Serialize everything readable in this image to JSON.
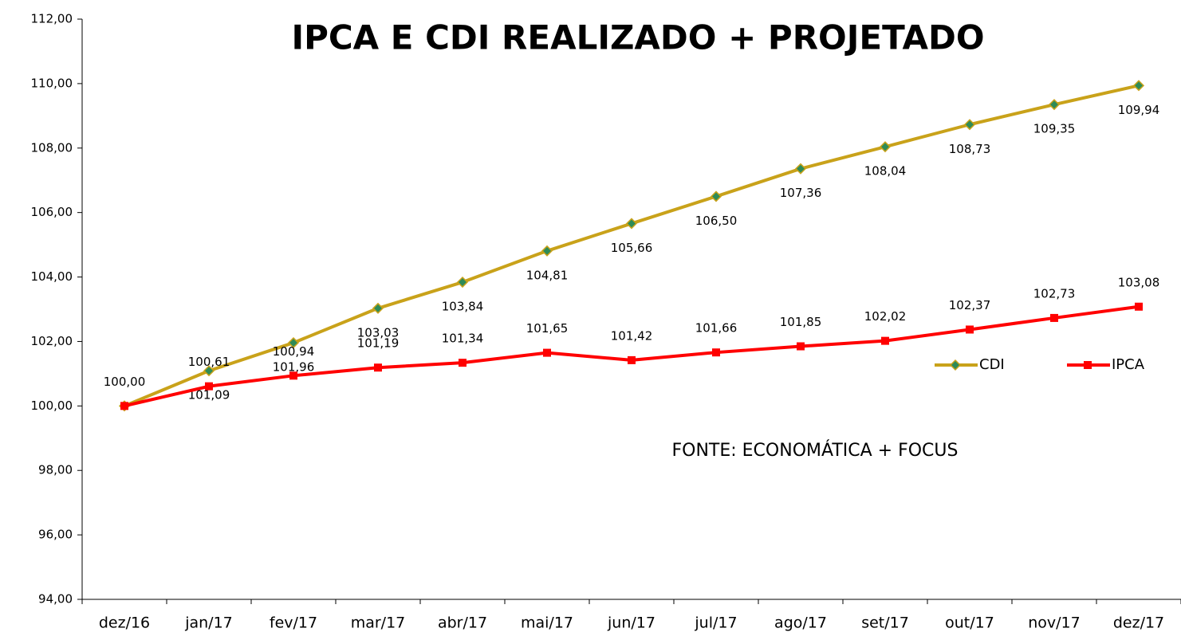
{
  "chart_data": {
    "type": "line",
    "title": "IPCA  E CDI  REALIZADO + PROJETADO",
    "annotation": "FONTE: ECONOMÁTICA + FOCUS",
    "categories": [
      "dez/16",
      "jan/17",
      "fev/17",
      "mar/17",
      "abr/17",
      "mai/17",
      "jun/17",
      "jul/17",
      "ago/17",
      "set/17",
      "out/17",
      "nov/17",
      "dez/17"
    ],
    "series": [
      {
        "name": "CDI",
        "color": "#c9a21a",
        "marker_color": "#2e8b57",
        "values": [
          100.0,
          101.09,
          101.96,
          103.03,
          103.84,
          104.81,
          105.66,
          106.5,
          107.36,
          108.04,
          108.73,
          109.35,
          109.94
        ],
        "value_labels": [
          null,
          "101,09",
          "101,96",
          "103,03",
          "103,84",
          "104,81",
          "105,66",
          "106,50",
          "107,36",
          "108,04",
          "108,73",
          "109,35",
          "109,94"
        ]
      },
      {
        "name": "IPCA",
        "color": "#ff0000",
        "marker_color": "#ff0000",
        "values": [
          100.0,
          100.61,
          100.94,
          101.19,
          101.34,
          101.65,
          101.42,
          101.66,
          101.85,
          102.02,
          102.37,
          102.73,
          103.08
        ],
        "value_labels": [
          "100,00",
          "100,61",
          "100,94",
          "101,19",
          "101,34",
          "101,65",
          "101,42",
          "101,66",
          "101,85",
          "102,02",
          "102,37",
          "102,73",
          "103,08"
        ]
      }
    ],
    "ylim": [
      94,
      112
    ],
    "yticks": [
      {
        "value": 94,
        "label": "94,00"
      },
      {
        "value": 96,
        "label": "96,00"
      },
      {
        "value": 98,
        "label": "98,00"
      },
      {
        "value": 100,
        "label": "100,00"
      },
      {
        "value": 102,
        "label": "102,00"
      },
      {
        "value": 104,
        "label": "104,00"
      },
      {
        "value": 106,
        "label": "106,00"
      },
      {
        "value": 108,
        "label": "108,00"
      },
      {
        "value": 110,
        "label": "110,00"
      },
      {
        "value": 112,
        "label": "112,00"
      }
    ],
    "grid": false,
    "legend": "right"
  }
}
